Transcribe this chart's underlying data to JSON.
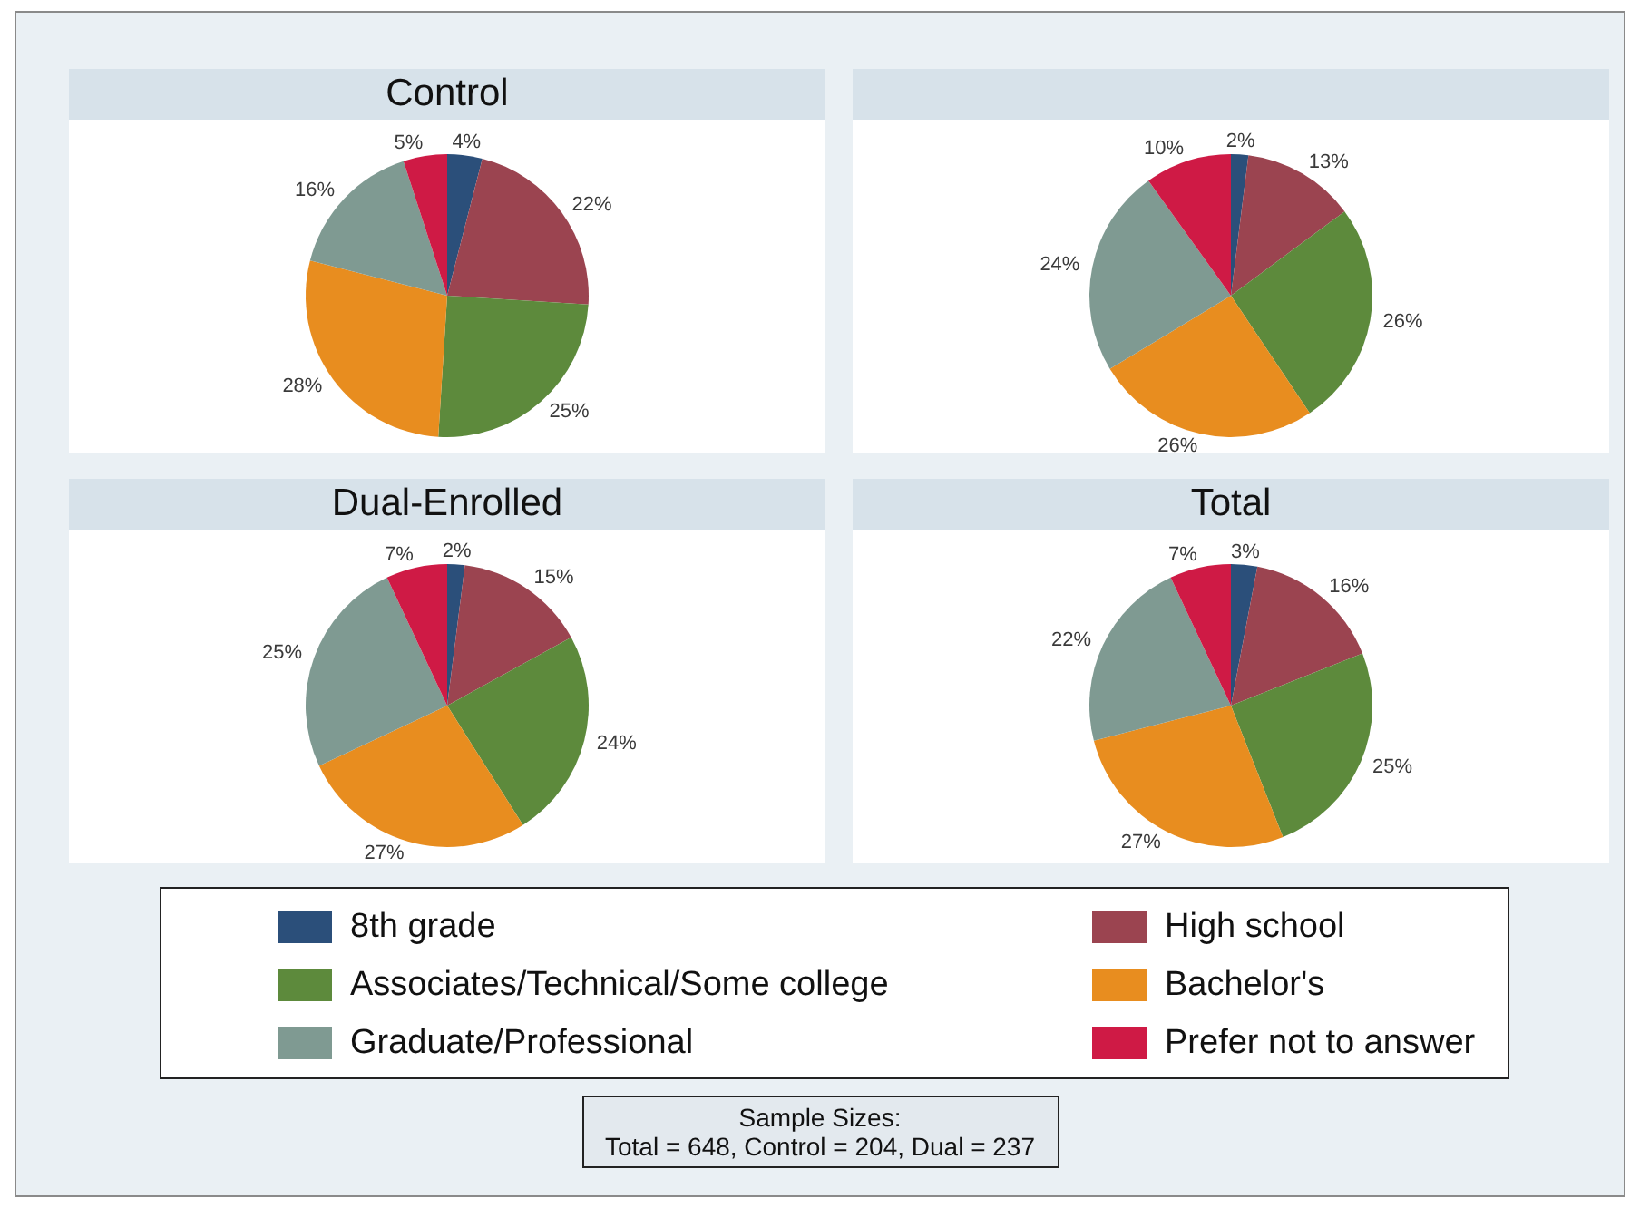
{
  "chart_data": [
    {
      "type": "pie",
      "title": "Control",
      "categories": [
        null,
        null,
        null,
        null,
        null,
        null
      ],
      "values": [
        4,
        22,
        25,
        28,
        16,
        5
      ],
      "value_labels": [
        "4%",
        "22%",
        "25%",
        "28%",
        "16%",
        "5%"
      ],
      "colors": [
        "#2b4f7a",
        "#9b4450",
        "#5d8a3c",
        "#e88d1f",
        "#7f9a92",
        "#cf1a45"
      ]
    },
    {
      "type": "pie",
      "title": null,
      "categories": [
        null,
        null,
        null,
        null,
        null,
        null
      ],
      "values": [
        2,
        13,
        26,
        26,
        24,
        10
      ],
      "value_labels": [
        "2%",
        "13%",
        "26%",
        "26%",
        "24%",
        "10%"
      ],
      "colors": [
        "#2b4f7a",
        "#9b4450",
        "#5d8a3c",
        "#e88d1f",
        "#7f9a92",
        "#cf1a45"
      ]
    },
    {
      "type": "pie",
      "title": "Dual-Enrolled",
      "categories": [
        null,
        null,
        null,
        null,
        null,
        null
      ],
      "values": [
        2,
        15,
        24,
        27,
        25,
        7
      ],
      "value_labels": [
        "2%",
        "15%",
        "24%",
        "27%",
        "25%",
        "7%"
      ],
      "colors": [
        "#2b4f7a",
        "#9b4450",
        "#5d8a3c",
        "#e88d1f",
        "#7f9a92",
        "#cf1a45"
      ]
    },
    {
      "type": "pie",
      "title": "Total",
      "categories": [
        "8th grade",
        "High school",
        "Associates/Technical/Some college",
        "Bachelor's",
        "Graduate/Professional",
        "Prefer not to answer"
      ],
      "values": [
        3,
        16,
        25,
        27,
        22,
        7
      ],
      "value_labels": [
        "3%",
        "16%",
        "25%",
        "27%",
        "22%",
        "7%"
      ],
      "colors": [
        "#2b4f7a",
        "#9b4450",
        "#5d8a3c",
        "#e88d1f",
        "#7f9a92",
        "#cf1a45"
      ],
      "legend": "bottom",
      "annotations": [
        "Sample Sizes:\nTotal = 648, Control = 204, Dual = 237"
      ]
    }
  ]
}
